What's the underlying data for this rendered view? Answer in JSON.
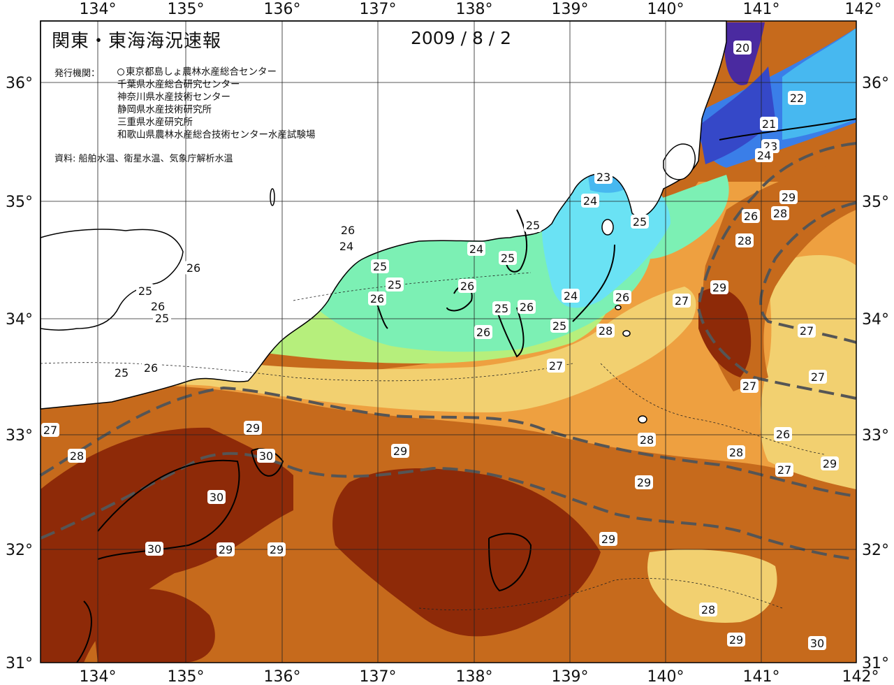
{
  "header": {
    "title": "関東・東海海況速報",
    "date": "2009 / 8 / 2",
    "agency_heading": "発行機関：",
    "agencies": [
      "東京都島しょ農林水産総合センター",
      "千葉県水産総合研究センター",
      "神奈川県水産技術センター",
      "静岡県水産技術研究所",
      "三重県水産研究所",
      "和歌山県農林水産総合技術センター水産試験場"
    ],
    "source": "資料: 船舶水温、衛星水温、気象庁解析水温"
  },
  "axes": {
    "longitude_labels": [
      "134°",
      "135°",
      "136°",
      "137°",
      "138°",
      "139°",
      "140°",
      "141°",
      "142°"
    ],
    "latitude_labels": [
      "36°",
      "35°",
      "34°",
      "33°",
      "32°",
      "31°"
    ]
  },
  "isotherm_labels": [
    "20",
    "22",
    "21",
    "23",
    "24",
    "23",
    "24",
    "25",
    "29",
    "28",
    "26",
    "28",
    "25",
    "26",
    "24",
    "25",
    "24",
    "25",
    "25",
    "26",
    "26",
    "25",
    "26",
    "25",
    "24",
    "26",
    "25",
    "26",
    "25",
    "26",
    "27",
    "29",
    "26",
    "28",
    "27",
    "27",
    "27",
    "25",
    "26",
    "27",
    "28",
    "26",
    "29",
    "29",
    "30",
    "28",
    "29",
    "30",
    "28",
    "27",
    "27",
    "29",
    "30",
    "29",
    "29",
    "28",
    "29",
    "29",
    "30"
  ],
  "colors": {
    "t20": "#4a2aa0",
    "t21": "#3548c8",
    "t22": "#3a7ee8",
    "t23": "#47b8f0",
    "t24": "#6ae2f4",
    "t25": "#7cf0b4",
    "t26": "#b6ef7c",
    "t27": "#f2d070",
    "t28": "#eea040",
    "t29": "#c66a1c",
    "t30": "#8e2a08",
    "land": "#ffffff"
  }
}
